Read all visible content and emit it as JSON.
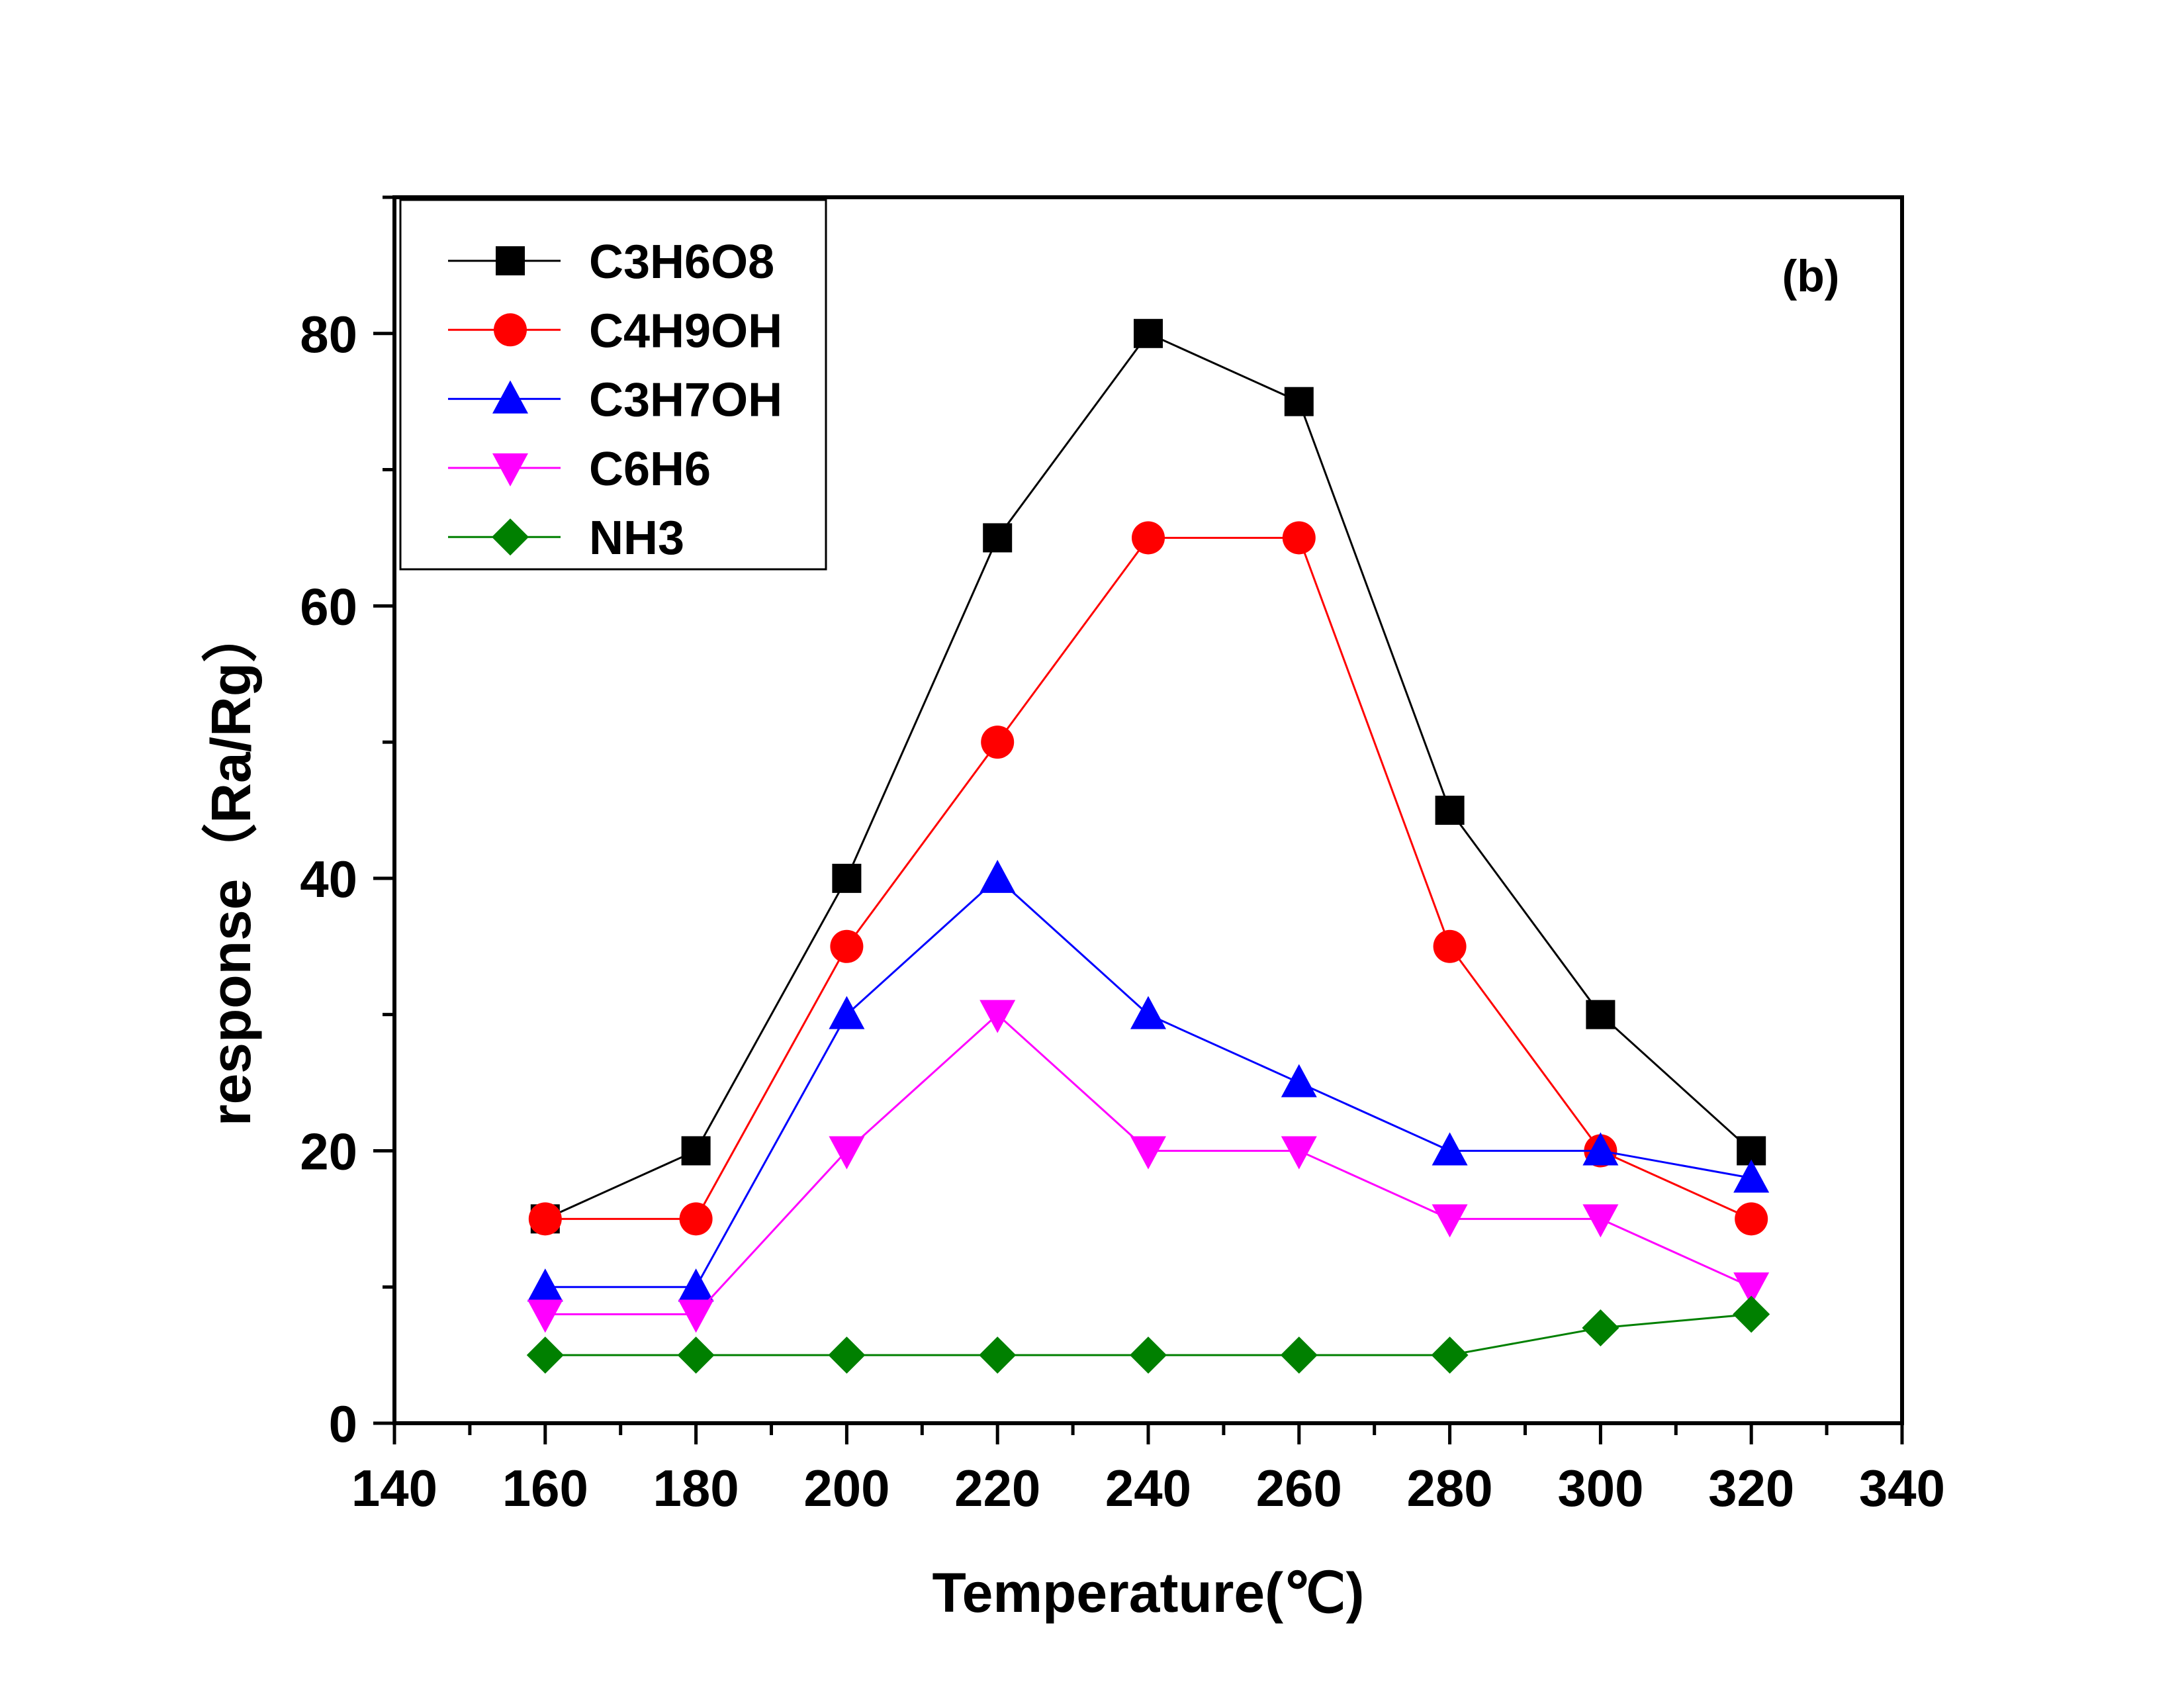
{
  "chart_data": {
    "type": "line",
    "panel_label": "(b)",
    "xlabel": "Temperature(℃)",
    "ylabel": "response（Ra/Rg）",
    "xlim": [
      140,
      340
    ],
    "ylim": [
      0,
      90
    ],
    "x_ticks": [
      140,
      160,
      180,
      200,
      220,
      240,
      260,
      280,
      300,
      320,
      340
    ],
    "y_ticks": [
      0,
      20,
      40,
      60,
      80
    ],
    "grid": false,
    "legend_position": "top-left",
    "x": [
      160,
      180,
      200,
      220,
      240,
      260,
      280,
      300,
      320
    ],
    "series": [
      {
        "name": "C3H6O8",
        "color": "#000000",
        "marker": "square",
        "values": [
          15,
          20,
          40,
          65,
          80,
          75,
          45,
          30,
          20
        ]
      },
      {
        "name": "C4H9OH",
        "color": "#ff0000",
        "marker": "circle",
        "values": [
          15,
          15,
          35,
          50,
          65,
          65,
          35,
          20,
          15
        ]
      },
      {
        "name": "C3H7OH",
        "color": "#0000ff",
        "marker": "triangle-up",
        "values": [
          10,
          10,
          30,
          40,
          30,
          25,
          20,
          20,
          18
        ]
      },
      {
        "name": "C6H6",
        "color": "#ff00ff",
        "marker": "triangle-down",
        "values": [
          8,
          8,
          20,
          30,
          20,
          20,
          15,
          15,
          10
        ]
      },
      {
        "name": "NH3",
        "color": "#008000",
        "marker": "diamond",
        "values": [
          5,
          5,
          5,
          5,
          5,
          5,
          5,
          7,
          8
        ]
      }
    ]
  }
}
